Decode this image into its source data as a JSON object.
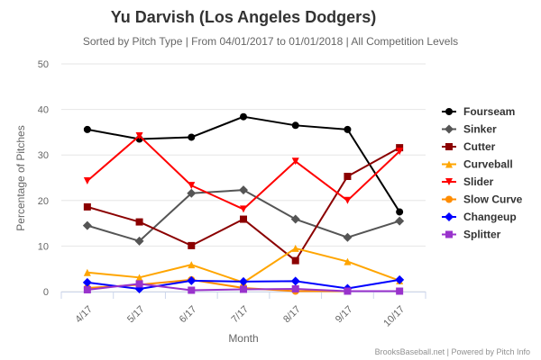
{
  "chart_data": {
    "type": "line",
    "title": "Yu Darvish (Los Angeles Dodgers)",
    "subtitle": "Sorted by Pitch Type | From 04/01/2017 to 01/01/2018 | All Competition Levels",
    "xlabel": "Month",
    "ylabel": "Percentage of Pitches",
    "ylim": [
      0,
      50
    ],
    "yticks": [
      "0",
      "10",
      "20",
      "30",
      "40",
      "50"
    ],
    "categories": [
      "4/17",
      "5/17",
      "6/17",
      "7/17",
      "8/17",
      "9/17",
      "10/17"
    ],
    "grid": true,
    "legend_position": "right",
    "series": [
      {
        "name": "Fourseam",
        "color": "#000000",
        "marker": "circle",
        "values": [
          35.6,
          33.5,
          33.9,
          38.4,
          36.5,
          35.6,
          17.5
        ]
      },
      {
        "name": "Sinker",
        "color": "#555555",
        "marker": "diamond",
        "values": [
          14.5,
          11.1,
          21.6,
          22.3,
          15.9,
          11.9,
          15.5
        ]
      },
      {
        "name": "Cutter",
        "color": "#8b0000",
        "marker": "square",
        "values": [
          18.6,
          15.3,
          10.1,
          15.9,
          6.8,
          25.3,
          31.6
        ]
      },
      {
        "name": "Curveball",
        "color": "#ffa500",
        "marker": "triangle-up",
        "values": [
          4.2,
          3.1,
          5.9,
          2.0,
          9.5,
          6.6,
          2.4
        ]
      },
      {
        "name": "Slider",
        "color": "#ff0000",
        "marker": "triangle-down",
        "values": [
          24.3,
          34.2,
          23.3,
          18.1,
          28.6,
          20.0,
          30.8
        ]
      },
      {
        "name": "Slow Curve",
        "color": "#ff8c00",
        "marker": "circle",
        "values": [
          0.8,
          1.5,
          2.6,
          0.8,
          0.1,
          0.1,
          0.1
        ]
      },
      {
        "name": "Changeup",
        "color": "#0000ff",
        "marker": "diamond",
        "values": [
          2.0,
          0.6,
          2.4,
          2.2,
          2.3,
          0.7,
          2.6
        ]
      },
      {
        "name": "Splitter",
        "color": "#9933cc",
        "marker": "square",
        "values": [
          0.4,
          1.7,
          0.3,
          0.5,
          0.6,
          0.1,
          0.1
        ]
      }
    ],
    "credit": "BrooksBaseball.net | Powered by Pitch Info"
  }
}
